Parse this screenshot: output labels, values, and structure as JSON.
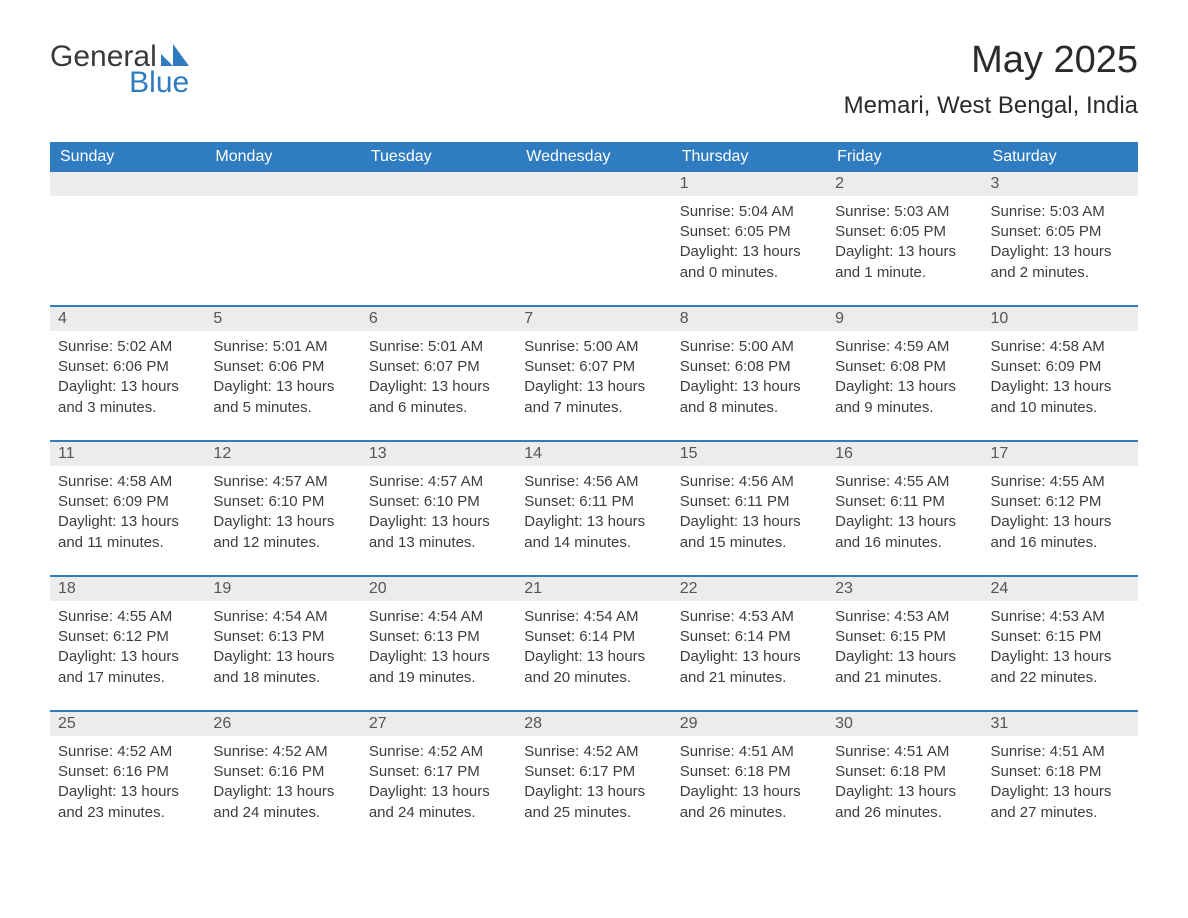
{
  "brand": {
    "word1": "General",
    "word2": "Blue",
    "accent_color": "#2f7cc0"
  },
  "header": {
    "month_title": "May 2025",
    "location": "Memari, West Bengal, India"
  },
  "columns": [
    "Sunday",
    "Monday",
    "Tuesday",
    "Wednesday",
    "Thursday",
    "Friday",
    "Saturday"
  ],
  "colors": {
    "header_bg": "#2f7cc0",
    "header_text": "#ffffff",
    "row_divider": "#2f7cc0",
    "daynum_bg": "#ececec",
    "text": "#3a3a3a"
  },
  "weeks": [
    [
      {
        "day": "",
        "sunrise": "",
        "sunset": "",
        "daylight": ""
      },
      {
        "day": "",
        "sunrise": "",
        "sunset": "",
        "daylight": ""
      },
      {
        "day": "",
        "sunrise": "",
        "sunset": "",
        "daylight": ""
      },
      {
        "day": "",
        "sunrise": "",
        "sunset": "",
        "daylight": ""
      },
      {
        "day": "1",
        "sunrise": "Sunrise: 5:04 AM",
        "sunset": "Sunset: 6:05 PM",
        "daylight": "Daylight: 13 hours and 0 minutes."
      },
      {
        "day": "2",
        "sunrise": "Sunrise: 5:03 AM",
        "sunset": "Sunset: 6:05 PM",
        "daylight": "Daylight: 13 hours and 1 minute."
      },
      {
        "day": "3",
        "sunrise": "Sunrise: 5:03 AM",
        "sunset": "Sunset: 6:05 PM",
        "daylight": "Daylight: 13 hours and 2 minutes."
      }
    ],
    [
      {
        "day": "4",
        "sunrise": "Sunrise: 5:02 AM",
        "sunset": "Sunset: 6:06 PM",
        "daylight": "Daylight: 13 hours and 3 minutes."
      },
      {
        "day": "5",
        "sunrise": "Sunrise: 5:01 AM",
        "sunset": "Sunset: 6:06 PM",
        "daylight": "Daylight: 13 hours and 5 minutes."
      },
      {
        "day": "6",
        "sunrise": "Sunrise: 5:01 AM",
        "sunset": "Sunset: 6:07 PM",
        "daylight": "Daylight: 13 hours and 6 minutes."
      },
      {
        "day": "7",
        "sunrise": "Sunrise: 5:00 AM",
        "sunset": "Sunset: 6:07 PM",
        "daylight": "Daylight: 13 hours and 7 minutes."
      },
      {
        "day": "8",
        "sunrise": "Sunrise: 5:00 AM",
        "sunset": "Sunset: 6:08 PM",
        "daylight": "Daylight: 13 hours and 8 minutes."
      },
      {
        "day": "9",
        "sunrise": "Sunrise: 4:59 AM",
        "sunset": "Sunset: 6:08 PM",
        "daylight": "Daylight: 13 hours and 9 minutes."
      },
      {
        "day": "10",
        "sunrise": "Sunrise: 4:58 AM",
        "sunset": "Sunset: 6:09 PM",
        "daylight": "Daylight: 13 hours and 10 minutes."
      }
    ],
    [
      {
        "day": "11",
        "sunrise": "Sunrise: 4:58 AM",
        "sunset": "Sunset: 6:09 PM",
        "daylight": "Daylight: 13 hours and 11 minutes."
      },
      {
        "day": "12",
        "sunrise": "Sunrise: 4:57 AM",
        "sunset": "Sunset: 6:10 PM",
        "daylight": "Daylight: 13 hours and 12 minutes."
      },
      {
        "day": "13",
        "sunrise": "Sunrise: 4:57 AM",
        "sunset": "Sunset: 6:10 PM",
        "daylight": "Daylight: 13 hours and 13 minutes."
      },
      {
        "day": "14",
        "sunrise": "Sunrise: 4:56 AM",
        "sunset": "Sunset: 6:11 PM",
        "daylight": "Daylight: 13 hours and 14 minutes."
      },
      {
        "day": "15",
        "sunrise": "Sunrise: 4:56 AM",
        "sunset": "Sunset: 6:11 PM",
        "daylight": "Daylight: 13 hours and 15 minutes."
      },
      {
        "day": "16",
        "sunrise": "Sunrise: 4:55 AM",
        "sunset": "Sunset: 6:11 PM",
        "daylight": "Daylight: 13 hours and 16 minutes."
      },
      {
        "day": "17",
        "sunrise": "Sunrise: 4:55 AM",
        "sunset": "Sunset: 6:12 PM",
        "daylight": "Daylight: 13 hours and 16 minutes."
      }
    ],
    [
      {
        "day": "18",
        "sunrise": "Sunrise: 4:55 AM",
        "sunset": "Sunset: 6:12 PM",
        "daylight": "Daylight: 13 hours and 17 minutes."
      },
      {
        "day": "19",
        "sunrise": "Sunrise: 4:54 AM",
        "sunset": "Sunset: 6:13 PM",
        "daylight": "Daylight: 13 hours and 18 minutes."
      },
      {
        "day": "20",
        "sunrise": "Sunrise: 4:54 AM",
        "sunset": "Sunset: 6:13 PM",
        "daylight": "Daylight: 13 hours and 19 minutes."
      },
      {
        "day": "21",
        "sunrise": "Sunrise: 4:54 AM",
        "sunset": "Sunset: 6:14 PM",
        "daylight": "Daylight: 13 hours and 20 minutes."
      },
      {
        "day": "22",
        "sunrise": "Sunrise: 4:53 AM",
        "sunset": "Sunset: 6:14 PM",
        "daylight": "Daylight: 13 hours and 21 minutes."
      },
      {
        "day": "23",
        "sunrise": "Sunrise: 4:53 AM",
        "sunset": "Sunset: 6:15 PM",
        "daylight": "Daylight: 13 hours and 21 minutes."
      },
      {
        "day": "24",
        "sunrise": "Sunrise: 4:53 AM",
        "sunset": "Sunset: 6:15 PM",
        "daylight": "Daylight: 13 hours and 22 minutes."
      }
    ],
    [
      {
        "day": "25",
        "sunrise": "Sunrise: 4:52 AM",
        "sunset": "Sunset: 6:16 PM",
        "daylight": "Daylight: 13 hours and 23 minutes."
      },
      {
        "day": "26",
        "sunrise": "Sunrise: 4:52 AM",
        "sunset": "Sunset: 6:16 PM",
        "daylight": "Daylight: 13 hours and 24 minutes."
      },
      {
        "day": "27",
        "sunrise": "Sunrise: 4:52 AM",
        "sunset": "Sunset: 6:17 PM",
        "daylight": "Daylight: 13 hours and 24 minutes."
      },
      {
        "day": "28",
        "sunrise": "Sunrise: 4:52 AM",
        "sunset": "Sunset: 6:17 PM",
        "daylight": "Daylight: 13 hours and 25 minutes."
      },
      {
        "day": "29",
        "sunrise": "Sunrise: 4:51 AM",
        "sunset": "Sunset: 6:18 PM",
        "daylight": "Daylight: 13 hours and 26 minutes."
      },
      {
        "day": "30",
        "sunrise": "Sunrise: 4:51 AM",
        "sunset": "Sunset: 6:18 PM",
        "daylight": "Daylight: 13 hours and 26 minutes."
      },
      {
        "day": "31",
        "sunrise": "Sunrise: 4:51 AM",
        "sunset": "Sunset: 6:18 PM",
        "daylight": "Daylight: 13 hours and 27 minutes."
      }
    ]
  ]
}
